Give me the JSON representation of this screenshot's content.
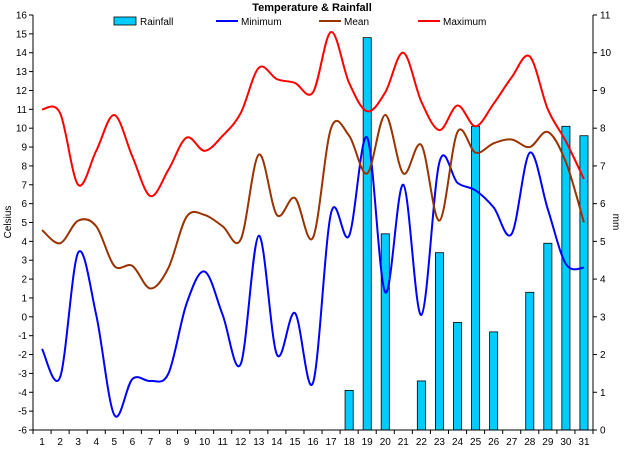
{
  "chart_data": {
    "type": "bar+line",
    "title": "Temperature & Rainfall",
    "ylabel_left": "Celsius",
    "ylabel_right": "mm",
    "xlabel": "",
    "x": [
      1,
      2,
      3,
      4,
      5,
      6,
      7,
      8,
      9,
      10,
      11,
      12,
      13,
      14,
      15,
      16,
      17,
      18,
      19,
      20,
      21,
      22,
      23,
      24,
      25,
      26,
      27,
      28,
      29,
      30,
      31
    ],
    "ylim_left": [
      -6,
      16
    ],
    "ylim_right": [
      0,
      11
    ],
    "yticks_left": [
      -6,
      -5,
      -4,
      -3,
      -2,
      -1,
      0,
      1,
      2,
      3,
      4,
      5,
      6,
      7,
      8,
      9,
      10,
      11,
      12,
      13,
      14,
      15,
      16
    ],
    "yticks_right": [
      0,
      1,
      2,
      3,
      4,
      5,
      6,
      7,
      8,
      9,
      10,
      11
    ],
    "grid": false,
    "legend_position": "top",
    "series": [
      {
        "name": "Rainfall",
        "kind": "bar",
        "axis": "right",
        "color": "#00CCFF",
        "values": [
          0,
          0,
          0,
          0,
          0,
          0,
          0,
          0,
          0,
          0,
          0,
          0,
          0,
          0,
          0,
          0,
          0,
          1.05,
          10.4,
          5.2,
          0,
          1.3,
          4.7,
          2.85,
          8.05,
          2.6,
          0,
          3.65,
          4.95,
          8.05,
          7.8
        ]
      },
      {
        "name": "Minimum",
        "kind": "line",
        "axis": "left",
        "color": "#0000FF",
        "values": [
          -1.7,
          -3.2,
          3.4,
          0.1,
          -5.2,
          -3.3,
          -3.4,
          -3.0,
          0.7,
          2.4,
          0.1,
          -2.5,
          4.3,
          -2.0,
          0.2,
          -3.5,
          5.5,
          4.3,
          9.5,
          1.3,
          7.0,
          0.1,
          8.2,
          7.1,
          6.7,
          5.8,
          4.4,
          8.7,
          5.7,
          2.8,
          2.6
        ]
      },
      {
        "name": "Mean",
        "kind": "line",
        "axis": "left",
        "color": "#993300",
        "values": [
          4.6,
          3.9,
          5.1,
          4.8,
          2.7,
          2.7,
          1.5,
          2.6,
          5.3,
          5.4,
          4.8,
          4.1,
          8.6,
          5.4,
          6.3,
          4.2,
          10.0,
          9.6,
          7.6,
          10.7,
          7.6,
          9.1,
          5.1,
          9.8,
          8.7,
          9.2,
          9.4,
          9.0,
          9.8,
          8.2,
          5.0
        ]
      },
      {
        "name": "Maximum",
        "kind": "line",
        "axis": "left",
        "color": "#FF0000",
        "values": [
          11.0,
          10.8,
          7.0,
          8.8,
          10.7,
          8.5,
          6.4,
          7.8,
          9.5,
          8.8,
          9.6,
          10.8,
          13.2,
          12.6,
          12.4,
          11.9,
          15.1,
          12.4,
          10.9,
          11.9,
          14.0,
          11.4,
          9.9,
          11.2,
          10.1,
          11.3,
          12.7,
          13.8,
          11.0,
          9.3,
          7.3
        ]
      }
    ]
  }
}
